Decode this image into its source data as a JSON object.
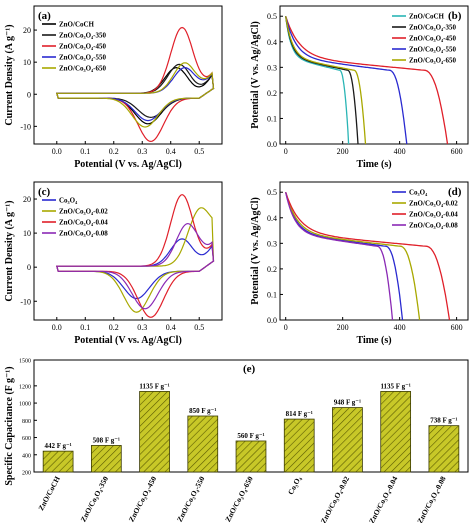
{
  "figure": {
    "panels": [
      "(a)",
      "(b)",
      "(c)",
      "(d)",
      "(e)"
    ]
  },
  "chart_data": [
    {
      "panel": "(a)",
      "type": "line",
      "xlabel": "Potential (V vs. Ag/AgCl)",
      "ylabel": "Current Density (A g⁻¹)",
      "xlim": [
        -0.08,
        0.58
      ],
      "ylim": [
        -15.5,
        27.5
      ],
      "xticks": [
        0.0,
        0.1,
        0.2,
        0.3,
        0.4,
        0.5
      ],
      "yticks": [
        -10,
        0,
        10,
        20
      ],
      "xtick_labels": [
        "0.0",
        "0.1",
        "0.2",
        "0.3",
        "0.4",
        "0.5"
      ],
      "ytick_labels": [
        "-10",
        "0",
        "10",
        "20"
      ],
      "legend_position": "top-left",
      "series": [
        {
          "name": "ZnO/CoCH",
          "color": "#000000",
          "anodic_peak": [
            0.42,
            8
          ],
          "cathodic_peak": [
            0.32,
            -8
          ]
        },
        {
          "name": "ZnO/Co₃O₄-350",
          "color": "#1a1a1a",
          "anodic_peak": [
            0.43,
            9
          ],
          "cathodic_peak": [
            0.33,
            -6
          ]
        },
        {
          "name": "ZnO/Co₃O₄-450",
          "color": "#e0202a",
          "anodic_peak": [
            0.44,
            20.5
          ],
          "cathodic_peak": [
            0.33,
            -13.5
          ]
        },
        {
          "name": "ZnO/Co₃O₄-550",
          "color": "#2a2ad0",
          "anodic_peak": [
            0.45,
            8
          ],
          "cathodic_peak": [
            0.32,
            -7
          ]
        },
        {
          "name": "ZnO/Co₃O₄-650",
          "color": "#a8a800",
          "anodic_peak": [
            0.45,
            9.5
          ],
          "cathodic_peak": [
            0.31,
            -9
          ]
        }
      ]
    },
    {
      "panel": "(b)",
      "type": "line",
      "xlabel": "Time (s)",
      "ylabel": "Potential (V vs. Ag/AgCl)",
      "xlim": [
        -20,
        640
      ],
      "ylim": [
        0.0,
        0.54
      ],
      "xticks": [
        0,
        200,
        400,
        600
      ],
      "yticks": [
        0.0,
        0.1,
        0.2,
        0.3,
        0.4,
        0.5
      ],
      "xtick_labels": [
        "0",
        "200",
        "400",
        "600"
      ],
      "ytick_labels": [
        "0.0",
        "0.1",
        "0.2",
        "0.3",
        "0.4",
        "0.5"
      ],
      "legend_position": "top-right",
      "series": [
        {
          "name": "ZnO/CoCH",
          "color": "#2ab5b5",
          "discharge_time_s": 221
        },
        {
          "name": "ZnO/Co₃O₄-350",
          "color": "#1a1a1a",
          "discharge_time_s": 254
        },
        {
          "name": "ZnO/Co₃O₄-450",
          "color": "#e0202a",
          "discharge_time_s": 568
        },
        {
          "name": "ZnO/Co₃O₄-550",
          "color": "#2a2ad0",
          "discharge_time_s": 425
        },
        {
          "name": "ZnO/Co₃O₄-650",
          "color": "#a8a800",
          "discharge_time_s": 280
        }
      ]
    },
    {
      "panel": "(c)",
      "type": "line",
      "xlabel": "Potential (V vs. Ag/AgCl)",
      "ylabel": "Current Density (A g⁻¹)",
      "xlim": [
        -0.08,
        0.58
      ],
      "ylim": [
        -15.5,
        25
      ],
      "xticks": [
        0.0,
        0.1,
        0.2,
        0.3,
        0.4,
        0.5
      ],
      "yticks": [
        -10,
        0,
        10,
        20
      ],
      "xtick_labels": [
        "0.0",
        "0.1",
        "0.2",
        "0.3",
        "0.4",
        "0.5"
      ],
      "ytick_labels": [
        "-10",
        "0",
        "10",
        "20"
      ],
      "legend_position": "top-left",
      "series": [
        {
          "name": "Co₃O₄",
          "color": "#2a2ad0",
          "anodic_peak": [
            0.44,
            8
          ],
          "cathodic_peak": [
            0.28,
            -8
          ]
        },
        {
          "name": "ZnO/Co₃O₄-0.02",
          "color": "#a8a800",
          "anodic_peak": [
            0.5,
            16
          ],
          "cathodic_peak": [
            0.28,
            -12
          ]
        },
        {
          "name": "ZnO/Co₃O₄-0.04",
          "color": "#e0202a",
          "anodic_peak": [
            0.44,
            21
          ],
          "cathodic_peak": [
            0.33,
            -13.5
          ]
        },
        {
          "name": "ZnO/Co₃O₄-0.08",
          "color": "#8a2ab5",
          "anodic_peak": [
            0.46,
            12.5
          ],
          "cathodic_peak": [
            0.31,
            -11
          ]
        }
      ]
    },
    {
      "panel": "(d)",
      "type": "line",
      "xlabel": "Time (s)",
      "ylabel": "Potential (V vs. Ag/AgCl)",
      "xlim": [
        -20,
        640
      ],
      "ylim": [
        0.0,
        0.54
      ],
      "xticks": [
        0,
        200,
        400,
        600
      ],
      "yticks": [
        0.0,
        0.1,
        0.2,
        0.3,
        0.4,
        0.5
      ],
      "xtick_labels": [
        "0",
        "200",
        "400",
        "600"
      ],
      "ytick_labels": [
        "0.0",
        "0.1",
        "0.2",
        "0.3",
        "0.4",
        "0.5"
      ],
      "legend_position": "top-right",
      "series": [
        {
          "name": "Co₃O₄",
          "color": "#2a2ad0",
          "discharge_time_s": 410
        },
        {
          "name": "ZnO/Co₃O₄-0.02",
          "color": "#a8a800",
          "discharge_time_s": 470
        },
        {
          "name": "ZnO/Co₃O₄-0.04",
          "color": "#e0202a",
          "discharge_time_s": 575
        },
        {
          "name": "ZnO/Co₃O₄-0.08",
          "color": "#8a2ab5",
          "discharge_time_s": 375
        }
      ]
    },
    {
      "panel": "(e)",
      "type": "bar",
      "ylabel": "Specific Capacitance (F g⁻¹)",
      "ylim": [
        200,
        1500
      ],
      "yticks": [
        200,
        400,
        600,
        800,
        1000,
        1200,
        1500
      ],
      "ytick_labels": [
        "200",
        "400",
        "600",
        "800",
        "1000",
        "1200",
        "1500"
      ],
      "bar_fill": "#c8c828",
      "categories": [
        "ZnO/CoCH",
        "ZnO/Co₃O₄-350",
        "ZnO/Co₃O₄-450",
        "ZnO/Co₃O₄-550",
        "ZnO/Co₃O₄-650",
        "Co₃O₄",
        "ZnO/Co₃O₄-0.02",
        "ZnO/Co₃O₄-0.04",
        "ZnO/Co₃O₄-0.08"
      ],
      "values": [
        442,
        508,
        1135,
        850,
        560,
        814,
        948,
        1135,
        738
      ],
      "value_labels": [
        "442 F g⁻¹",
        "508 F g⁻¹",
        "1135 F g⁻¹",
        "850 F g⁻¹",
        "560 F g⁻¹",
        "814 F g⁻¹",
        "948 F g⁻¹",
        "1135 F g⁻¹",
        "738 F g⁻¹"
      ]
    }
  ]
}
